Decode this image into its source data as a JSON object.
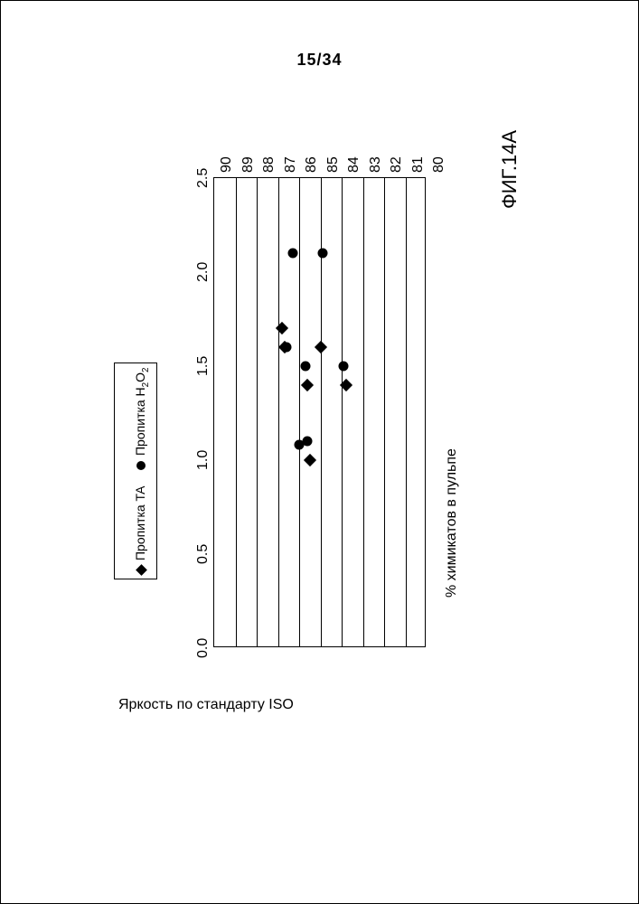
{
  "page": {
    "number": "15/34"
  },
  "chart": {
    "type": "scatter",
    "title": "ФИГ.14A",
    "x_axis_label": "% химикатов в пульпе",
    "y_axis_label": "Яркость по стандарту ISO",
    "xlim": [
      0.0,
      2.5
    ],
    "ylim": [
      80,
      90
    ],
    "xticks": [
      0.0,
      0.5,
      1.0,
      1.5,
      2.0,
      2.5
    ],
    "xtick_labels": [
      "0.0",
      "0.5",
      "1.0",
      "1.5",
      "2.0",
      "2.5"
    ],
    "yticks": [
      80,
      81,
      82,
      83,
      84,
      85,
      86,
      87,
      88,
      89,
      90
    ],
    "ytick_labels": [
      "80",
      "81",
      "82",
      "83",
      "84",
      "85",
      "86",
      "87",
      "88",
      "89",
      "90"
    ],
    "grid_y": true,
    "grid_x": false,
    "background_color": "#ffffff",
    "grid_color": "#000000",
    "border_color": "#000000",
    "series": [
      {
        "name": "Пропитка TA",
        "marker": "diamond",
        "color": "#000000",
        "marker_size": 10,
        "data": [
          {
            "x": 1.0,
            "y": 85.5
          },
          {
            "x": 1.4,
            "y": 85.6
          },
          {
            "x": 1.4,
            "y": 83.8
          },
          {
            "x": 1.6,
            "y": 86.7
          },
          {
            "x": 1.6,
            "y": 85.0
          },
          {
            "x": 1.7,
            "y": 86.8
          }
        ]
      },
      {
        "name": "Пропитка H₂O₂",
        "marker": "circle",
        "color": "#000000",
        "marker_size": 11,
        "data": [
          {
            "x": 1.08,
            "y": 86.0
          },
          {
            "x": 1.1,
            "y": 85.6
          },
          {
            "x": 1.5,
            "y": 85.7
          },
          {
            "x": 1.5,
            "y": 83.9
          },
          {
            "x": 1.6,
            "y": 86.6
          },
          {
            "x": 2.1,
            "y": 86.3
          },
          {
            "x": 2.1,
            "y": 84.9
          }
        ]
      }
    ],
    "legend": {
      "items": [
        "Пропитка TA",
        "Пропитка H2O2"
      ]
    },
    "title_fontsize": 22,
    "label_fontsize": 16,
    "tick_fontsize": 16,
    "legend_fontsize": 14
  }
}
